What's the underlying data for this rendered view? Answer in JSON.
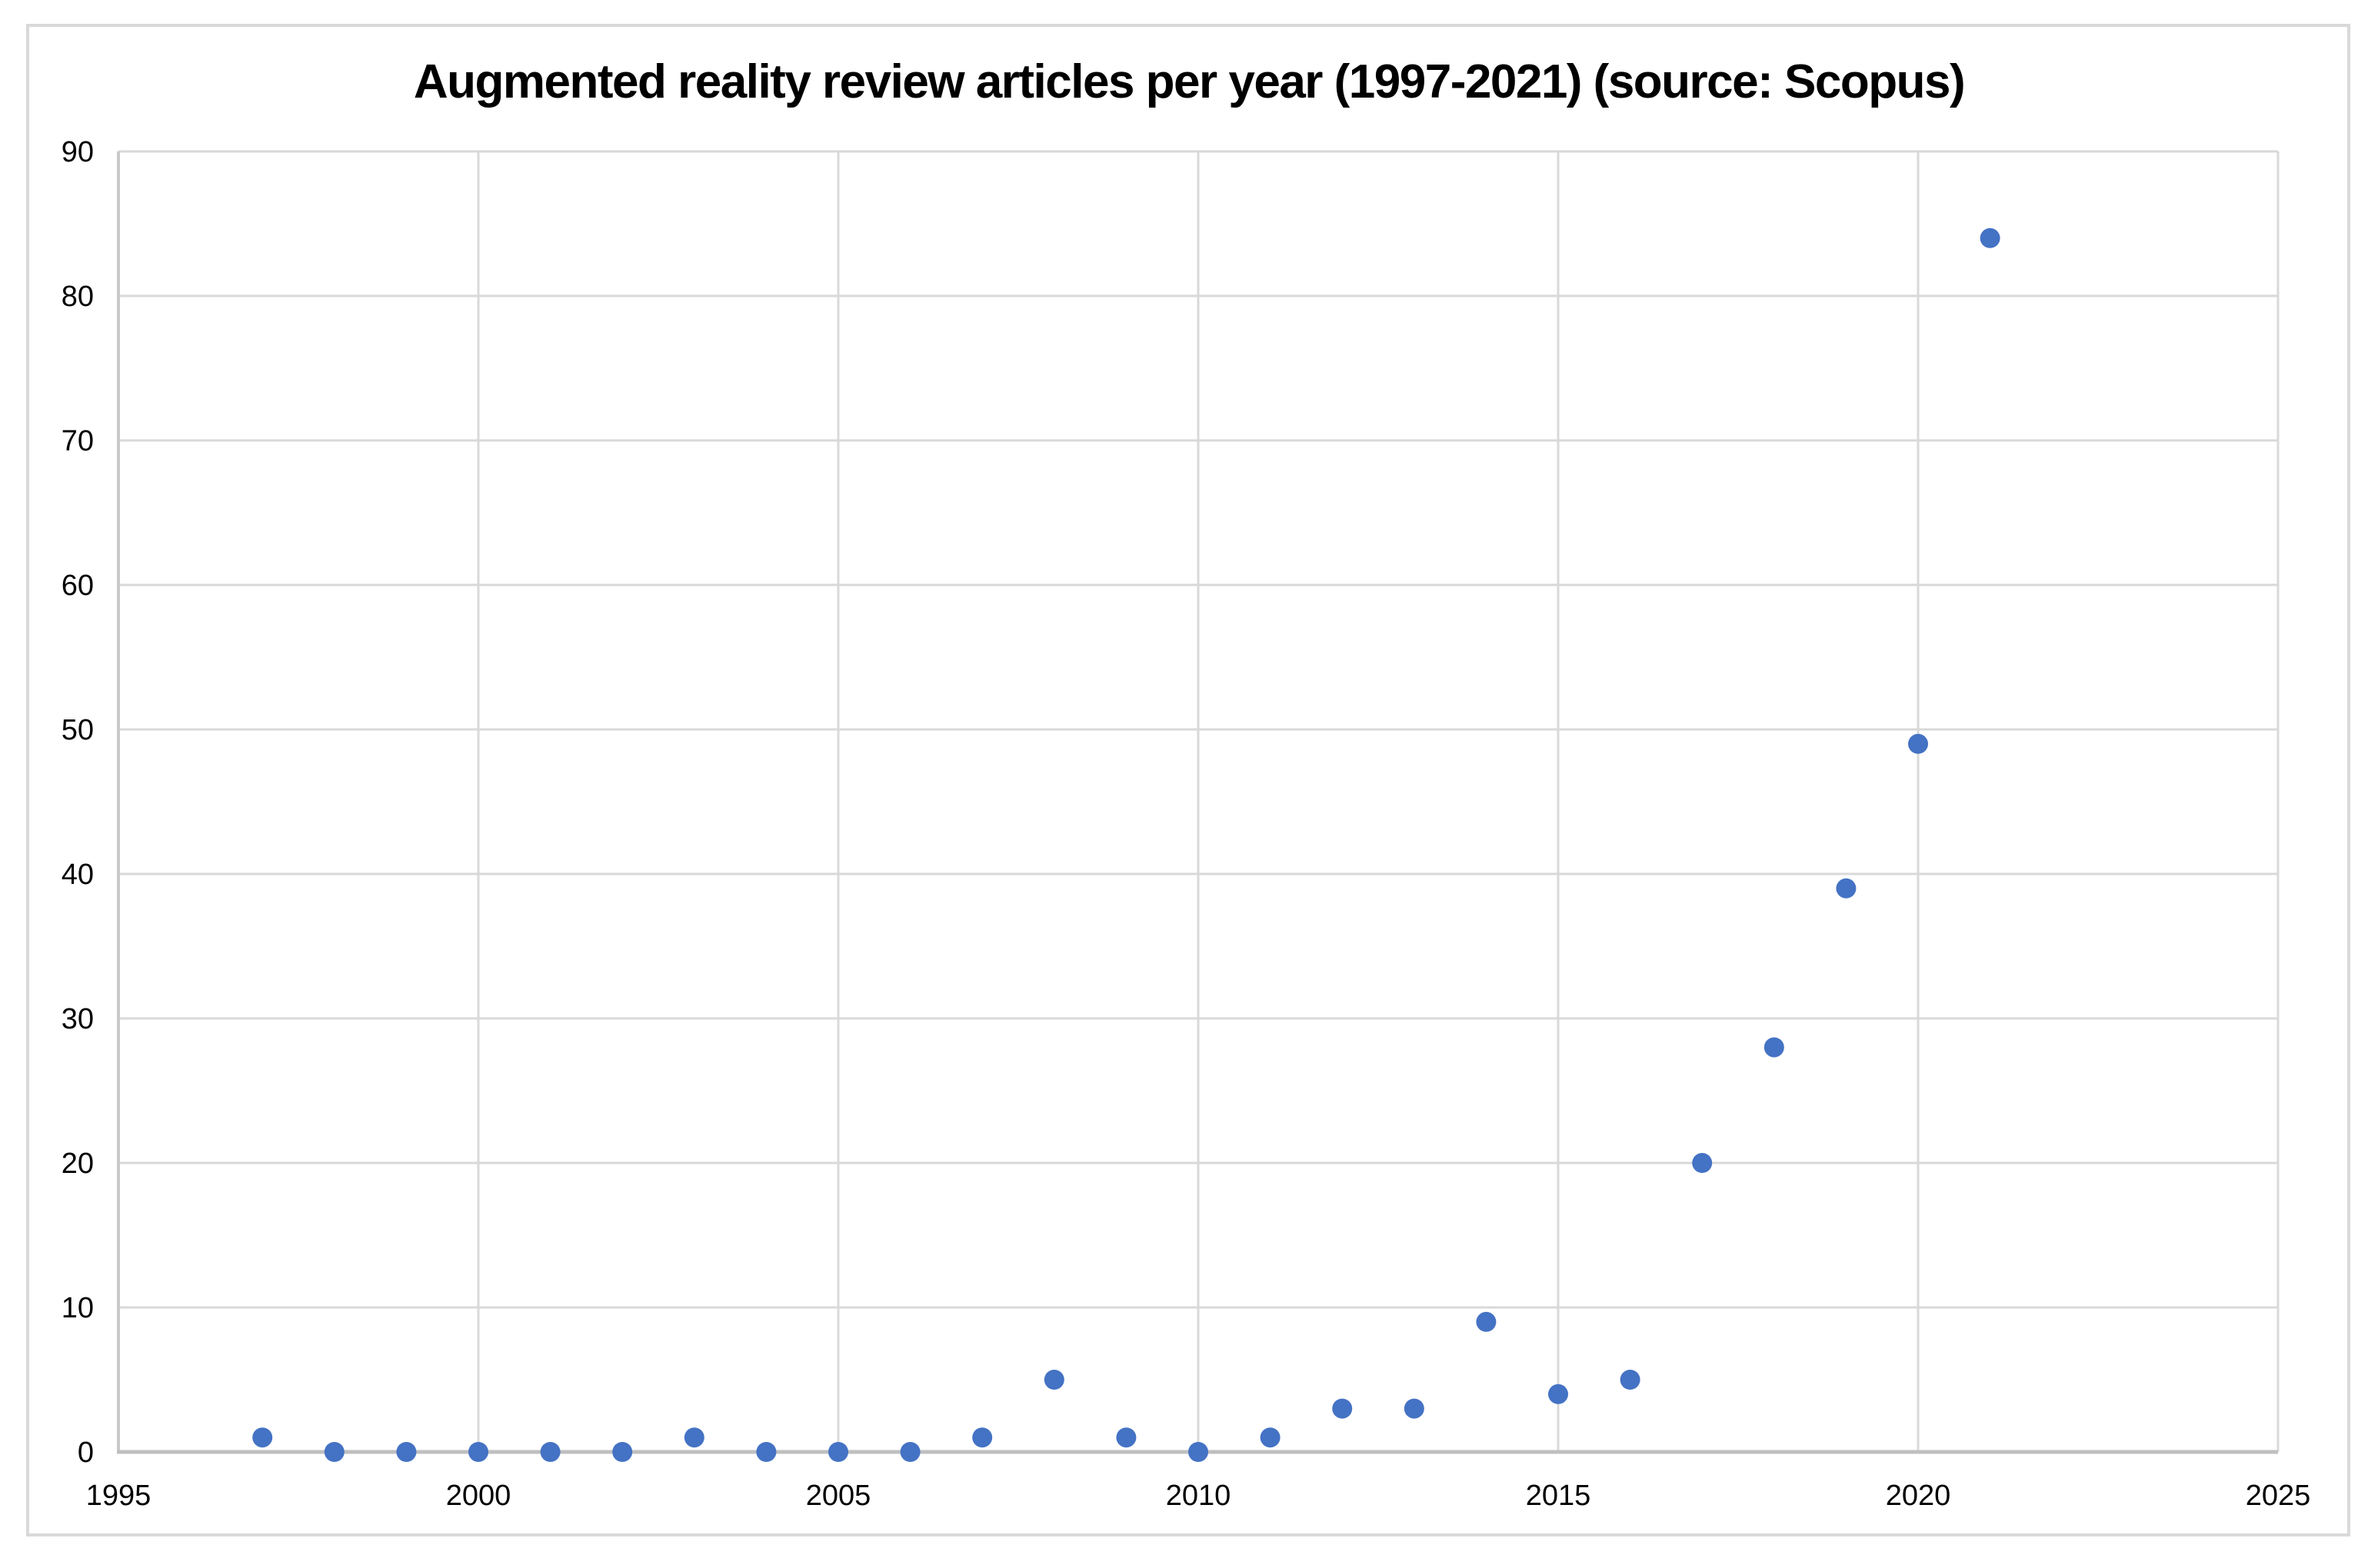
{
  "chart_data": {
    "type": "scatter",
    "title": "Augmented reality review articles per year (1997-2021) (source: Scopus)",
    "x": [
      1997,
      1998,
      1999,
      2000,
      2001,
      2002,
      2003,
      2004,
      2005,
      2006,
      2007,
      2008,
      2009,
      2010,
      2011,
      2012,
      2013,
      2014,
      2015,
      2016,
      2017,
      2018,
      2019,
      2020,
      2021
    ],
    "y": [
      1,
      0,
      0,
      0,
      0,
      0,
      1,
      0,
      0,
      0,
      1,
      5,
      1,
      0,
      1,
      3,
      3,
      9,
      4,
      5,
      20,
      28,
      39,
      49,
      84
    ],
    "xlabel": "",
    "ylabel": "",
    "xlim": [
      1995,
      2025
    ],
    "ylim": [
      0,
      90
    ],
    "xticks": [
      "1995",
      "2000",
      "2005",
      "2010",
      "2015",
      "2020",
      "2025"
    ],
    "yticks": [
      "0",
      "10",
      "20",
      "30",
      "40",
      "50",
      "60",
      "70",
      "80",
      "90"
    ],
    "grid": true,
    "legend": "none",
    "colors": {
      "marker": "#4472C4",
      "gridline": "#D9D9D9",
      "axis_x": "#BFBFBF",
      "axis_y": "#C9C9C9",
      "frame_border": "#D9D9D9",
      "tick_label": "#000000",
      "title": "#000000",
      "background": "#FFFFFF"
    }
  }
}
